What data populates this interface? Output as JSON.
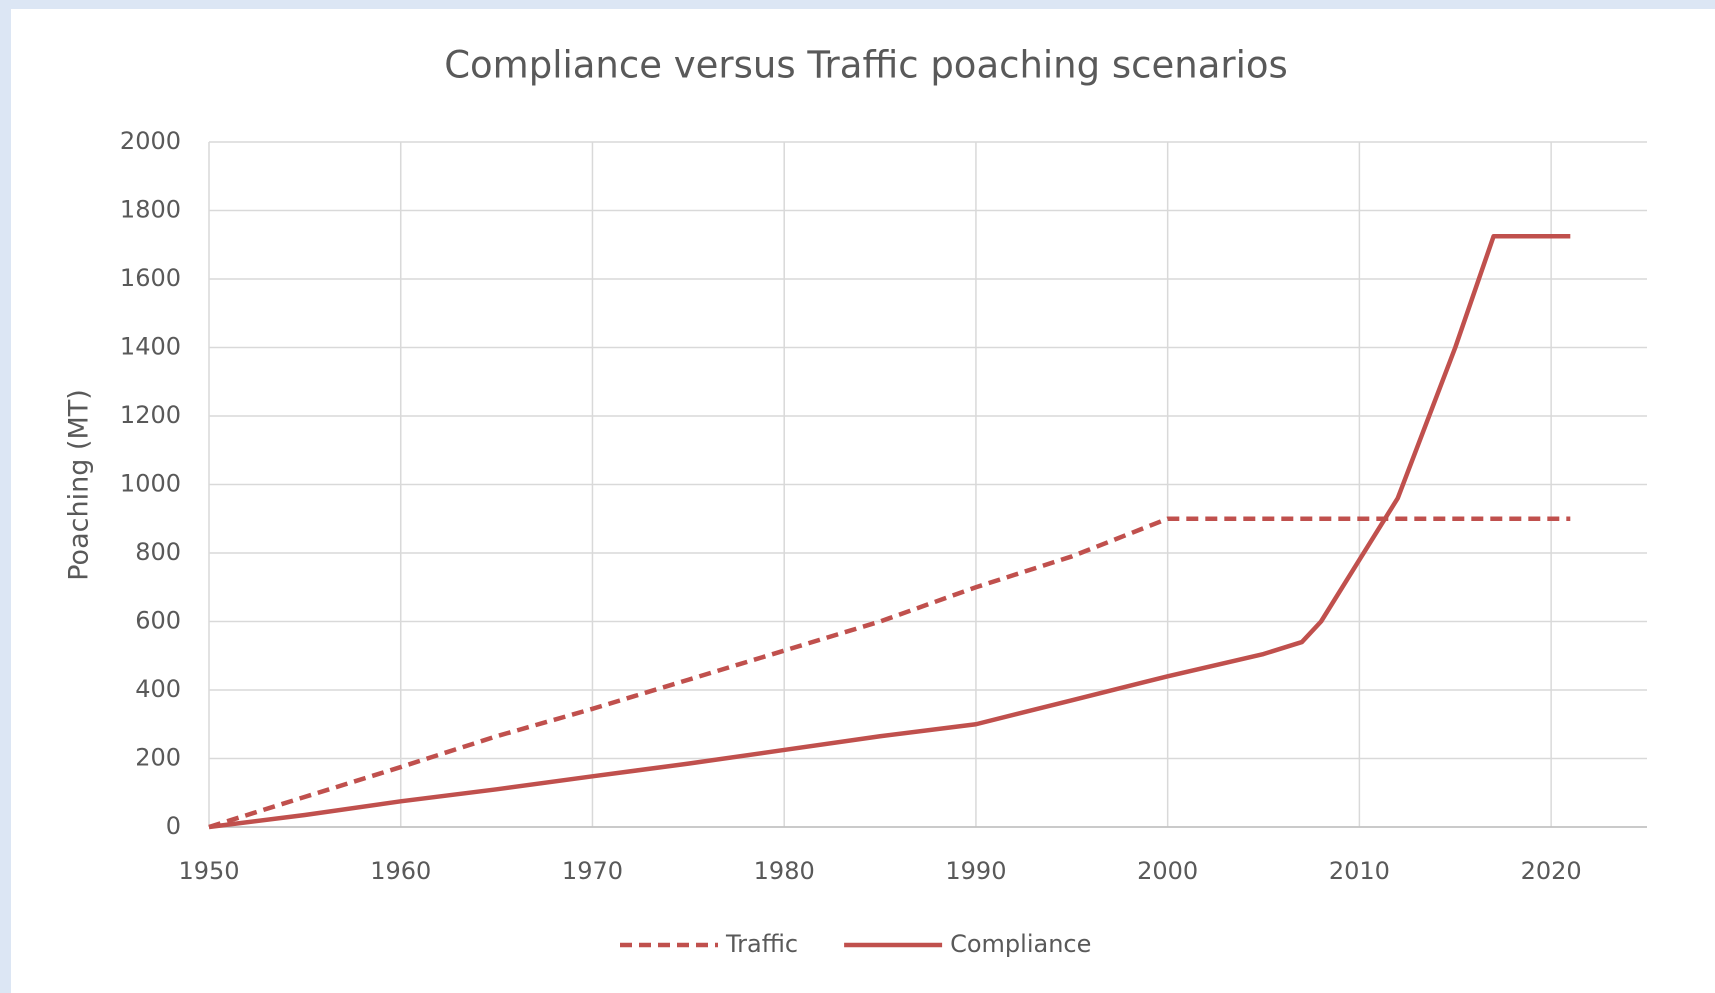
{
  "chart_data": {
    "type": "line",
    "title": "Compliance versus Traffic poaching scenarios",
    "y_label": "Poaching (MT)",
    "x": [
      1950,
      1955,
      1960,
      1965,
      1970,
      1975,
      1980,
      1985,
      1990,
      1995,
      2000,
      2005,
      2007,
      2008,
      2010,
      2012,
      2015,
      2017,
      2021
    ],
    "series": [
      {
        "name": "Traffic",
        "color": "#c0504d",
        "style": "dashed",
        "values": [
          0,
          88,
          175,
          265,
          345,
          430,
          515,
          600,
          700,
          790,
          900,
          900,
          900,
          900,
          900,
          900,
          900,
          900,
          900
        ]
      },
      {
        "name": "Compliance",
        "color": "#c0504d",
        "style": "solid",
        "values": [
          0,
          35,
          75,
          110,
          148,
          185,
          225,
          265,
          300,
          370,
          440,
          505,
          540,
          600,
          780,
          960,
          1400,
          1725,
          1725
        ]
      }
    ],
    "xlim": [
      1950,
      2025
    ],
    "xticks": [
      1950,
      1960,
      1970,
      1980,
      1990,
      2000,
      2010,
      2020
    ],
    "ylim": [
      0,
      2000
    ],
    "yticks": [
      0,
      200,
      400,
      600,
      800,
      1000,
      1200,
      1400,
      1600,
      1800,
      2000
    ],
    "grid": true,
    "legend": "bottom"
  }
}
